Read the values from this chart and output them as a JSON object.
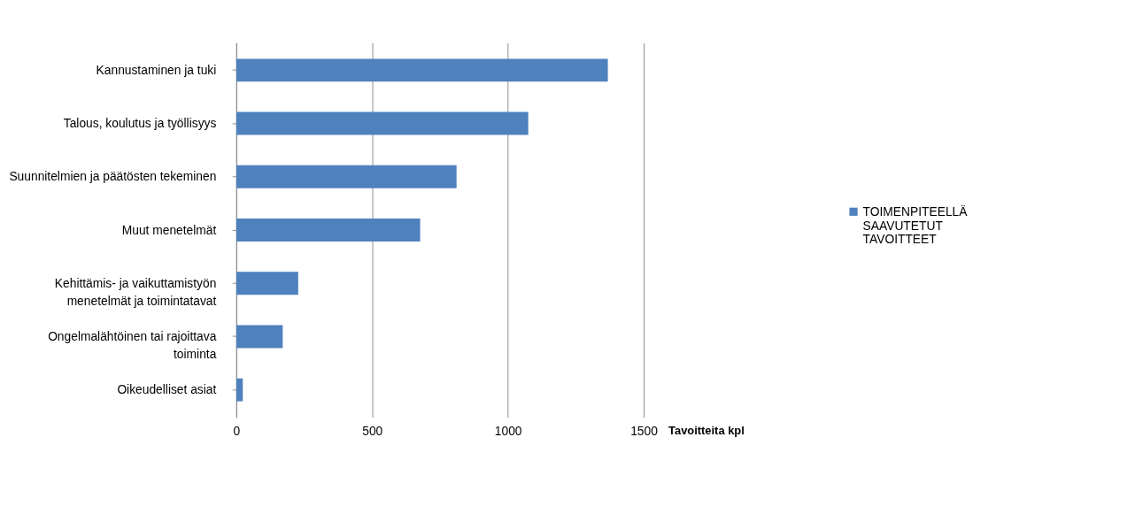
{
  "chart_data": {
    "type": "bar",
    "orientation": "horizontal",
    "xlabel": "Tavoitteita kpl",
    "categories": [
      "Kannustaminen ja tuki",
      "Talous, koulutus ja työllisyys",
      "Suunnitelmien ja päätösten tekeminen",
      "Muut menetelmät",
      "Kehittämis- ja vaikuttamistyön\nmenetelmät ja toimintatavat",
      "Ongelmalähtöinen tai rajoittava\ntoiminta",
      "Oikeudelliset asiat"
    ],
    "series": [
      {
        "name": "TOIMENPITEELLÄ\nSAAVUTETUT\nTAVOITTEET",
        "color": "#4f81bd",
        "values": [
          1368,
          1075,
          811,
          677,
          228,
          171,
          24
        ]
      }
    ],
    "xlim": [
      0,
      1500
    ],
    "xticks": [
      0,
      500,
      1000,
      1500
    ],
    "grid": "x",
    "legend": "right"
  }
}
